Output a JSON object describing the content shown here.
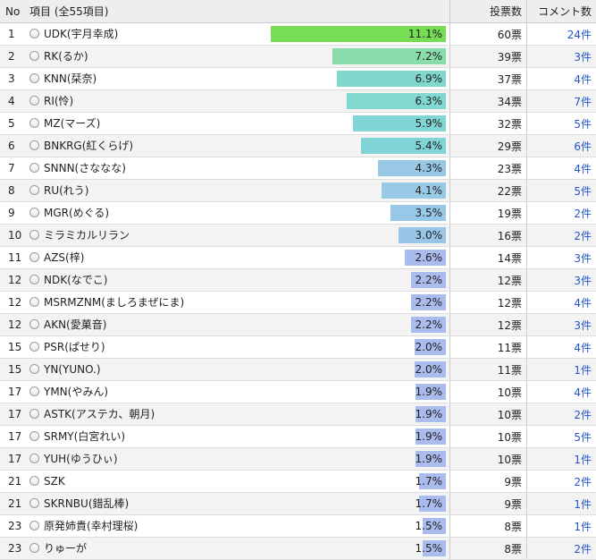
{
  "header": {
    "no": "No",
    "item": "項目 (全55項目)",
    "votes": "投票数",
    "comments": "コメント数"
  },
  "colors": {
    "bar_top": "#77dd55",
    "bar_high": "#7fdcbf",
    "bar_mid": "#7fd6d6",
    "bar_low": "#99c8e6",
    "bar_min": "#aabbee"
  },
  "rows": [
    {
      "rank": "1",
      "name": "UDK(宇月幸成)",
      "percent": "11.1%",
      "pct": 11.1,
      "votes": "60票",
      "comments": "24件",
      "color": "#77dd55"
    },
    {
      "rank": "2",
      "name": "RK(るか)",
      "percent": "7.2%",
      "pct": 7.2,
      "votes": "39票",
      "comments": "3件",
      "color": "#88dcaa"
    },
    {
      "rank": "3",
      "name": "KNN(栞奈)",
      "percent": "6.9%",
      "pct": 6.9,
      "votes": "37票",
      "comments": "4件",
      "color": "#80d8cc"
    },
    {
      "rank": "4",
      "name": "RI(怜)",
      "percent": "6.3%",
      "pct": 6.3,
      "votes": "34票",
      "comments": "7件",
      "color": "#80d8d0"
    },
    {
      "rank": "5",
      "name": "MZ(マーズ)",
      "percent": "5.9%",
      "pct": 5.9,
      "votes": "32票",
      "comments": "5件",
      "color": "#80d6d4"
    },
    {
      "rank": "6",
      "name": "BNKRG(紅くらげ)",
      "percent": "5.4%",
      "pct": 5.4,
      "votes": "29票",
      "comments": "6件",
      "color": "#80d4d6"
    },
    {
      "rank": "7",
      "name": "SNNN(さななな)",
      "percent": "4.3%",
      "pct": 4.3,
      "votes": "23票",
      "comments": "4件",
      "color": "#98c8e6"
    },
    {
      "rank": "8",
      "name": "RU(れう)",
      "percent": "4.1%",
      "pct": 4.1,
      "votes": "22票",
      "comments": "5件",
      "color": "#98cae6"
    },
    {
      "rank": "9",
      "name": "MGR(めぐる)",
      "percent": "3.5%",
      "pct": 3.5,
      "votes": "19票",
      "comments": "2件",
      "color": "#98c8e8"
    },
    {
      "rank": "10",
      "name": "ミラミカルリラン",
      "percent": "3.0%",
      "pct": 3.0,
      "votes": "16票",
      "comments": "2件",
      "color": "#98c6e8"
    },
    {
      "rank": "11",
      "name": "AZS(梓)",
      "percent": "2.6%",
      "pct": 2.6,
      "votes": "14票",
      "comments": "3件",
      "color": "#aabbee"
    },
    {
      "rank": "12",
      "name": "NDK(なでこ)",
      "percent": "2.2%",
      "pct": 2.2,
      "votes": "12票",
      "comments": "3件",
      "color": "#aabbee"
    },
    {
      "rank": "12",
      "name": "MSRMZNM(ましろまぜにま)",
      "percent": "2.2%",
      "pct": 2.2,
      "votes": "12票",
      "comments": "4件",
      "color": "#aabbee"
    },
    {
      "rank": "12",
      "name": "AKN(愛菓音)",
      "percent": "2.2%",
      "pct": 2.2,
      "votes": "12票",
      "comments": "3件",
      "color": "#aabbee"
    },
    {
      "rank": "15",
      "name": "PSR(ぱせり)",
      "percent": "2.0%",
      "pct": 2.0,
      "votes": "11票",
      "comments": "4件",
      "color": "#aabbee"
    },
    {
      "rank": "15",
      "name": "YN(YUNO.)",
      "percent": "2.0%",
      "pct": 2.0,
      "votes": "11票",
      "comments": "1件",
      "color": "#aabbee"
    },
    {
      "rank": "17",
      "name": "YMN(やみん)",
      "percent": "1.9%",
      "pct": 1.9,
      "votes": "10票",
      "comments": "4件",
      "color": "#aabbee"
    },
    {
      "rank": "17",
      "name": "ASTK(アステカ、朝月)",
      "percent": "1.9%",
      "pct": 1.9,
      "votes": "10票",
      "comments": "2件",
      "color": "#aabbee"
    },
    {
      "rank": "17",
      "name": "SRMY(白宮れい)",
      "percent": "1.9%",
      "pct": 1.9,
      "votes": "10票",
      "comments": "5件",
      "color": "#aabbee"
    },
    {
      "rank": "17",
      "name": "YUH(ゆうひぃ)",
      "percent": "1.9%",
      "pct": 1.9,
      "votes": "10票",
      "comments": "1件",
      "color": "#aabbee"
    },
    {
      "rank": "21",
      "name": "SZK",
      "percent": "1.7%",
      "pct": 1.7,
      "votes": "9票",
      "comments": "2件",
      "color": "#aabbee"
    },
    {
      "rank": "21",
      "name": "SKRNBU(錯乱棒)",
      "percent": "1.7%",
      "pct": 1.7,
      "votes": "9票",
      "comments": "1件",
      "color": "#aabbee"
    },
    {
      "rank": "23",
      "name": "原発姉貴(幸村理桜)",
      "percent": "1.5%",
      "pct": 1.5,
      "votes": "8票",
      "comments": "1件",
      "color": "#aabbee"
    },
    {
      "rank": "23",
      "name": "りゅーが",
      "percent": "1.5%",
      "pct": 1.5,
      "votes": "8票",
      "comments": "2件",
      "color": "#aabbee"
    }
  ]
}
